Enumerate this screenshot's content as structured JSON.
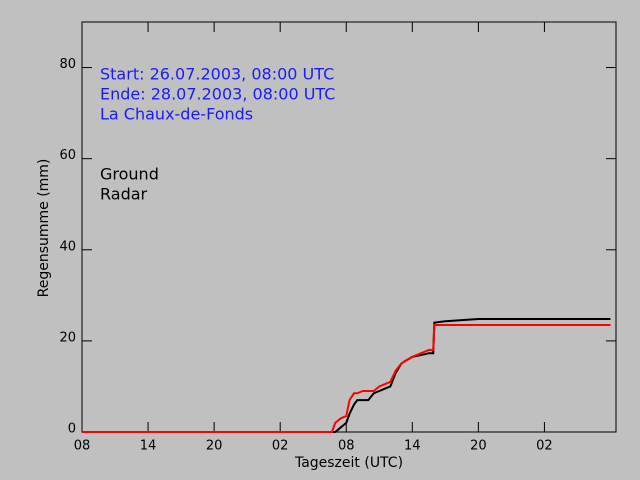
{
  "chart_data": {
    "type": "line",
    "annotations": [
      "Start: 26.07.2003, 08:00 UTC",
      "Ende: 28.07.2003, 08:00 UTC",
      "La Chaux-de-Fonds"
    ],
    "x_label": "Tageszeit (UTC)",
    "y_label": "Regensumme (mm)",
    "x": [
      0,
      22.7,
      23,
      23.5,
      24,
      24.3,
      24.7,
      25,
      25.5,
      26,
      26.5,
      27,
      27.5,
      28,
      28.5,
      29,
      29.3,
      30,
      31,
      31.5,
      31.9,
      32,
      33,
      36,
      48
    ],
    "series": [
      {
        "name": "Ground",
        "color": "#000000",
        "values": [
          0,
          0,
          0,
          1,
          2,
          4,
          6,
          7,
          7,
          7,
          8.5,
          9,
          9.5,
          10,
          13,
          15,
          15.5,
          16.5,
          17,
          17.3,
          17.3,
          24,
          24.3,
          24.8,
          24.8
        ]
      },
      {
        "name": "Radar",
        "color": "#ff0000",
        "values": [
          0,
          0,
          2,
          3,
          3.5,
          7,
          8.5,
          8.5,
          9,
          9,
          9,
          10,
          10.5,
          11,
          13.5,
          15,
          15.5,
          16.5,
          17.5,
          18,
          18,
          23.5,
          23.5,
          23.5,
          23.5
        ]
      }
    ],
    "xlim": [
      0,
      48.5
    ],
    "xticks": [
      {
        "value": 0,
        "label": "08"
      },
      {
        "value": 6,
        "label": "14"
      },
      {
        "value": 12,
        "label": "20"
      },
      {
        "value": 18,
        "label": "02"
      },
      {
        "value": 24,
        "label": "08"
      },
      {
        "value": 30,
        "label": "14"
      },
      {
        "value": 36,
        "label": "20"
      },
      {
        "value": 42,
        "label": "02"
      }
    ],
    "ylim": [
      0,
      90
    ],
    "yticks": [
      0,
      20,
      40,
      60,
      80
    ]
  }
}
